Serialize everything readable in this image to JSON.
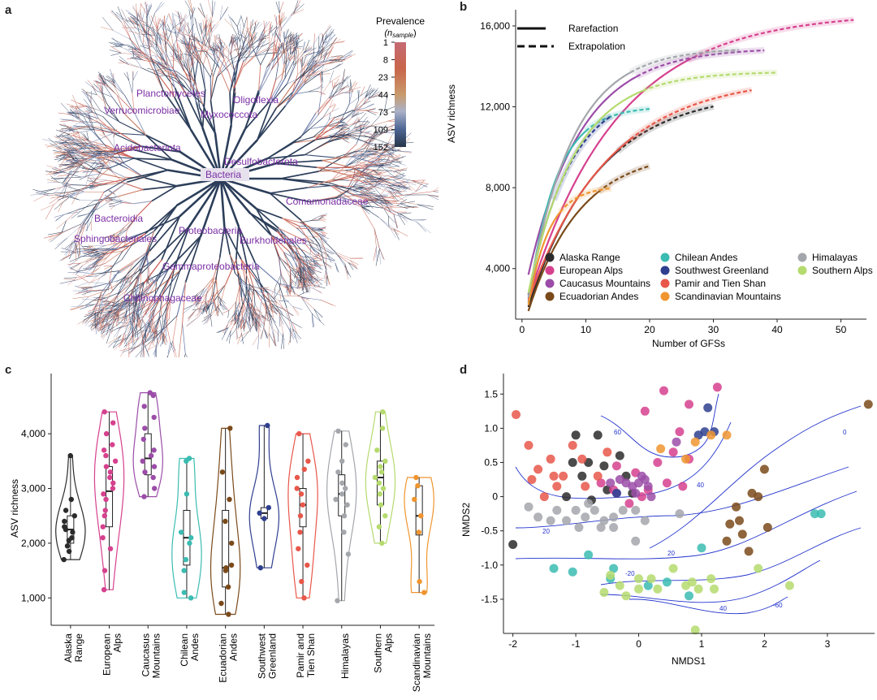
{
  "panel_labels": {
    "a": "a",
    "b": "b",
    "c": "c",
    "d": "d"
  },
  "tree": {
    "legend_title": "Prevalence",
    "legend_subtitle_main": "(n",
    "legend_subtitle_sub": "sample",
    "legend_subtitle_end": ")",
    "legend_ticks": [
      "1",
      "8",
      "23",
      "44",
      "73",
      "109",
      "152"
    ],
    "legend_colors": [
      "#c56a74",
      "#c9654b",
      "#c98b4b",
      "#c8a88a",
      "#9aa3c2",
      "#4d6594",
      "#263548"
    ],
    "taxa": [
      "Planctomycetes",
      "Oligoflexia",
      "Verrucomicrobiae",
      "Myxococcota",
      "Acidobacteriota",
      "Desulfobacterota",
      "Bacteria",
      "Comamonadaceae",
      "Bacteroidia",
      "Proteobacteria",
      "Sphingobacteriales",
      "Burkholderiales",
      "Gammaproteobacteria",
      "Chitinophagaceae"
    ]
  },
  "chart_data": [
    {
      "type": "line",
      "title": "",
      "xlabel": "Number of GFSs",
      "ylabel": "ASV richness",
      "xlim": [
        -1,
        54
      ],
      "ylim": [
        1500,
        16800
      ],
      "xticks": [
        0,
        10,
        20,
        30,
        40,
        50
      ],
      "yticks": [
        4000,
        8000,
        12000,
        16000
      ],
      "ytick_labels": [
        "4,000",
        "8,000",
        "12,000",
        "16,000"
      ],
      "linestyle_legend": {
        "solid": "Rarefaction",
        "dashed": "Extrapolation"
      },
      "series": [
        {
          "name": "Alaska Range",
          "color": "#2b2b2b",
          "n_obs": 15,
          "y_obs": 9800,
          "n_max": 30,
          "y_max": 12000,
          "y_start": 2100
        },
        {
          "name": "European Alps",
          "color": "#d6418e",
          "n_obs": 26,
          "y_obs": 14300,
          "n_max": 52,
          "y_max": 16050,
          "y_start": 2500
        },
        {
          "name": "Caucasus Mountains",
          "color": "#9b4da8",
          "n_obs": 18,
          "y_obs": 13500,
          "n_max": 38,
          "y_max": 14550,
          "y_start": 3700
        },
        {
          "name": "Ecuadorian Andes",
          "color": "#7a4a1a",
          "n_obs": 12,
          "y_obs": 7800,
          "n_max": 20,
          "y_max": 9300,
          "y_start": 1900
        },
        {
          "name": "Chilean Andes",
          "color": "#3bbcb2",
          "n_obs": 10,
          "y_obs": 10800,
          "n_max": 20,
          "y_max": 11700,
          "y_start": 2300
        },
        {
          "name": "Southwest Greenland",
          "color": "#2f3f8f",
          "n_obs": 5,
          "y_obs": 7400,
          "n_max": 14,
          "y_max": 11500,
          "y_start": 2700
        },
        {
          "name": "Pamir and Tien Shan",
          "color": "#e8574a",
          "n_obs": 17,
          "y_obs": 10400,
          "n_max": 36,
          "y_max": 12700,
          "y_start": 2400
        },
        {
          "name": "Scandinavian Mountains",
          "color": "#f0952f",
          "n_obs": 6,
          "y_obs": 6800,
          "n_max": 14,
          "y_max": 7750,
          "y_start": 2200
        },
        {
          "name": "Himalayas",
          "color": "#a3a6ab",
          "n_obs": 17,
          "y_obs": 13700,
          "n_max": 34,
          "y_max": 14600,
          "y_start": 2600
        },
        {
          "name": "Southern Alps",
          "color": "#b5da6e",
          "n_obs": 19,
          "y_obs": 12800,
          "n_max": 40,
          "y_max": 13500,
          "y_start": 2800
        }
      ]
    },
    {
      "type": "violin",
      "xlabel": "",
      "ylabel": "ASV richness",
      "ylim": [
        500,
        5100
      ],
      "yticks": [
        1000,
        2000,
        3000,
        4000
      ],
      "ytick_labels": [
        "1,000",
        "2,000",
        "3,000",
        "4,000"
      ],
      "groups": [
        {
          "name": "Alaska Range",
          "label_lines": [
            "Alaska",
            "Range"
          ],
          "color": "#2b2b2b",
          "values": [
            1700,
            1850,
            1950,
            2050,
            2100,
            2200,
            2250,
            2300,
            2400,
            2500,
            2600,
            2800,
            3600
          ],
          "q1": 2000,
          "median": 2250,
          "q3": 2500
        },
        {
          "name": "European Alps",
          "label_lines": [
            "European",
            "Alps"
          ],
          "color": "#d6418e",
          "values": [
            1150,
            1500,
            1900,
            2100,
            2300,
            2500,
            2600,
            2800,
            2900,
            3000,
            3100,
            3200,
            3300,
            3400,
            3500,
            3600,
            3700,
            3800,
            4000,
            4200,
            4400
          ],
          "q1": 2300,
          "median": 2950,
          "q3": 3400
        },
        {
          "name": "Caucasus Mountains",
          "label_lines": [
            "Caucasus",
            "Mountains"
          ],
          "color": "#9b4da8",
          "values": [
            2850,
            3000,
            3200,
            3300,
            3400,
            3500,
            3600,
            3700,
            3900,
            4100,
            4300,
            4500,
            4700,
            4750
          ],
          "q1": 3250,
          "median": 3550,
          "q3": 4000
        },
        {
          "name": "Chilean Andes",
          "label_lines": [
            "Chilean",
            "Andes"
          ],
          "color": "#3bbcb2",
          "values": [
            1000,
            1100,
            1500,
            1700,
            2000,
            2100,
            2200,
            2900,
            3500,
            3550
          ],
          "q1": 1600,
          "median": 2100,
          "q3": 2600
        },
        {
          "name": "Ecuadorian Andes",
          "label_lines": [
            "Ecuadorian",
            "Andes"
          ],
          "color": "#7a4a1a",
          "values": [
            700,
            900,
            1200,
            1500,
            1550,
            1600,
            2000,
            2400,
            2800,
            3300,
            4100
          ],
          "q1": 1200,
          "median": 1550,
          "q3": 2600
        },
        {
          "name": "Southwest Greenland",
          "label_lines": [
            "Southwest",
            "Greenland"
          ],
          "color": "#2f3f8f",
          "values": [
            1550,
            2450,
            2550,
            2650,
            4150
          ],
          "q1": 2450,
          "median": 2550,
          "q3": 2650
        },
        {
          "name": "Pamir and Tien Shan",
          "label_lines": [
            "Pamir and",
            "Tien Shan"
          ],
          "color": "#e8574a",
          "values": [
            1000,
            1300,
            1600,
            1900,
            2200,
            2500,
            2700,
            2900,
            3000,
            3200,
            3350,
            3500,
            4000
          ],
          "q1": 2300,
          "median": 2700,
          "q3": 3000
        },
        {
          "name": "Himalayas",
          "label_lines": [
            "Himalayas"
          ],
          "color": "#a3a6ab",
          "values": [
            950,
            1800,
            2200,
            2500,
            2700,
            2800,
            2900,
            3000,
            3100,
            3300,
            3500,
            3800,
            4050
          ],
          "q1": 2500,
          "median": 2900,
          "q3": 3250
        },
        {
          "name": "Southern Alps",
          "label_lines": [
            "Southern",
            "Alps"
          ],
          "color": "#b5da6e",
          "values": [
            2000,
            2300,
            2500,
            2700,
            2900,
            3000,
            3100,
            3200,
            3300,
            3400,
            3500,
            3700,
            4100,
            4400
          ],
          "q1": 2700,
          "median": 3200,
          "q3": 3500
        },
        {
          "name": "Scandinavian Mountains",
          "label_lines": [
            "Scandinavian",
            "Mountains"
          ],
          "color": "#f0952f",
          "values": [
            1100,
            1300,
            2200,
            2500,
            2800,
            3050,
            3200
          ],
          "q1": 2150,
          "median": 2500,
          "q3": 3050
        }
      ]
    },
    {
      "type": "scatter",
      "xlabel": "NMDS1",
      "ylabel": "NMDS2",
      "xlim": [
        -2.15,
        3.75
      ],
      "ylim": [
        -2.0,
        1.8
      ],
      "xticks": [
        -2,
        -1,
        0,
        1,
        2,
        3
      ],
      "yticks": [
        -1.5,
        -1.0,
        -0.5,
        0,
        0.5,
        1.0,
        1.5
      ],
      "ytick_labels": [
        "-1.5",
        "-1.0",
        "-0.5",
        "0",
        "0.5",
        "1.0",
        "1.5"
      ],
      "contour_levels": [
        "60",
        "40",
        "0",
        "20",
        "20",
        "-20",
        "40",
        "-60"
      ],
      "series": [
        {
          "name": "Alaska Range",
          "color": "#2b2b2b",
          "points": [
            [
              -2.0,
              -0.7
            ],
            [
              -1.0,
              0.9
            ],
            [
              -0.8,
              0.5
            ],
            [
              -0.65,
              0.9
            ],
            [
              -0.55,
              0.45
            ],
            [
              -1.05,
              0.5
            ],
            [
              -1.15,
              0.0
            ],
            [
              -0.3,
              0.6
            ],
            [
              -0.2,
              0.3
            ],
            [
              -0.1,
              0.05
            ],
            [
              -0.5,
              0.1
            ],
            [
              -0.9,
              0.3
            ],
            [
              -0.75,
              -0.05
            ]
          ]
        },
        {
          "name": "European Alps",
          "color": "#d6418e",
          "points": [
            [
              0.1,
              1.25
            ],
            [
              0.4,
              1.55
            ],
            [
              0.8,
              1.35
            ],
            [
              1.25,
              1.6
            ],
            [
              0.65,
              0.95
            ],
            [
              0.55,
              0.65
            ],
            [
              0.8,
              0.55
            ],
            [
              -0.35,
              0.45
            ],
            [
              -0.05,
              0.35
            ],
            [
              0.3,
              0.5
            ],
            [
              0.15,
              0.1
            ],
            [
              -0.6,
              0.2
            ],
            [
              -0.4,
              0.1
            ],
            [
              0.05,
              0.0
            ],
            [
              -0.15,
              -0.1
            ],
            [
              0.45,
              0.2
            ],
            [
              0.7,
              0.15
            ]
          ]
        },
        {
          "name": "Caucasus Mountains",
          "color": "#9b4da8",
          "points": [
            [
              -0.2,
              0.2
            ],
            [
              -0.1,
              0.15
            ],
            [
              0.0,
              0.2
            ],
            [
              0.1,
              0.25
            ],
            [
              -0.3,
              0.25
            ],
            [
              -0.05,
              0.05
            ],
            [
              0.2,
              0.0
            ],
            [
              -0.35,
              0.05
            ],
            [
              -0.45,
              0.2
            ],
            [
              0.05,
              0.3
            ],
            [
              0.6,
              0.8
            ],
            [
              0.15,
              0.15
            ]
          ]
        },
        {
          "name": "Ecuadorian Andes",
          "color": "#7a4a1a",
          "points": [
            [
              1.55,
              -0.15
            ],
            [
              1.65,
              -0.55
            ],
            [
              1.4,
              -0.65
            ],
            [
              1.6,
              -0.35
            ],
            [
              1.8,
              0.05
            ],
            [
              2.05,
              -0.45
            ],
            [
              1.9,
              0.0
            ],
            [
              2.0,
              0.4
            ],
            [
              1.75,
              -0.8
            ],
            [
              1.45,
              -0.4
            ],
            [
              3.65,
              1.35
            ]
          ]
        },
        {
          "name": "Chilean Andes",
          "color": "#3bbcb2",
          "points": [
            [
              -1.35,
              -1.05
            ],
            [
              -1.05,
              -1.1
            ],
            [
              -0.8,
              -0.85
            ],
            [
              -0.4,
              -1.05
            ],
            [
              0.15,
              -1.3
            ],
            [
              0.45,
              -1.25
            ],
            [
              0.8,
              -1.45
            ],
            [
              1.0,
              -0.75
            ],
            [
              2.8,
              -0.25
            ],
            [
              2.9,
              -0.25
            ],
            [
              -0.45,
              -1.2
            ]
          ]
        },
        {
          "name": "Southwest Greenland",
          "color": "#2f3f8f",
          "points": [
            [
              1.1,
              1.3
            ],
            [
              1.05,
              0.95
            ],
            [
              1.2,
              0.95
            ],
            [
              0.95,
              0.9
            ],
            [
              -0.35,
              0.05
            ]
          ]
        },
        {
          "name": "Pamir and Tien Shan",
          "color": "#e8574a",
          "points": [
            [
              -1.95,
              1.2
            ],
            [
              -1.75,
              0.75
            ],
            [
              -1.6,
              0.4
            ],
            [
              -1.4,
              0.55
            ],
            [
              -1.7,
              0.25
            ],
            [
              -1.3,
              0.15
            ],
            [
              -1.2,
              0.3
            ],
            [
              -0.9,
              0.55
            ],
            [
              -0.5,
              0.65
            ],
            [
              -0.65,
              0.3
            ],
            [
              -1.5,
              0.0
            ],
            [
              -0.85,
              0.15
            ],
            [
              -1.35,
              0.3
            ],
            [
              -1.05,
              0.75
            ]
          ]
        },
        {
          "name": "Scandinavian Mountains",
          "color": "#f0952f",
          "points": [
            [
              0.9,
              0.8
            ],
            [
              0.75,
              0.55
            ],
            [
              1.15,
              0.9
            ],
            [
              1.4,
              0.9
            ],
            [
              0.35,
              0.7
            ]
          ]
        },
        {
          "name": "Himalayas",
          "color": "#a3a6ab",
          "points": [
            [
              -1.75,
              -0.15
            ],
            [
              -1.6,
              -0.3
            ],
            [
              -1.3,
              -0.2
            ],
            [
              -1.15,
              -0.35
            ],
            [
              -1.0,
              -0.2
            ],
            [
              -0.85,
              -0.3
            ],
            [
              -0.7,
              -0.2
            ],
            [
              -0.55,
              -0.35
            ],
            [
              -0.4,
              -0.3
            ],
            [
              -0.25,
              -0.2
            ],
            [
              -0.05,
              -0.2
            ],
            [
              0.1,
              -0.35
            ],
            [
              0.65,
              -0.25
            ],
            [
              -0.95,
              -0.45
            ],
            [
              -0.6,
              -0.45
            ],
            [
              -0.4,
              -0.45
            ],
            [
              -0.05,
              -0.65
            ],
            [
              -1.4,
              -0.35
            ],
            [
              -0.8,
              -0.1
            ]
          ]
        },
        {
          "name": "Southern Alps",
          "color": "#b5da6e",
          "points": [
            [
              -0.55,
              -1.4
            ],
            [
              -0.3,
              -1.3
            ],
            [
              0.0,
              -1.2
            ],
            [
              0.2,
              -1.2
            ],
            [
              0.3,
              -1.35
            ],
            [
              0.55,
              -1.05
            ],
            [
              0.75,
              -1.3
            ],
            [
              0.85,
              -1.25
            ],
            [
              0.95,
              -1.35
            ],
            [
              1.15,
              -1.2
            ],
            [
              1.2,
              -1.35
            ],
            [
              1.9,
              -1.05
            ],
            [
              2.4,
              -1.3
            ],
            [
              -0.45,
              -1.15
            ],
            [
              -0.2,
              -1.45
            ],
            [
              0.0,
              -1.35
            ],
            [
              0.9,
              -1.95
            ]
          ]
        }
      ]
    }
  ]
}
